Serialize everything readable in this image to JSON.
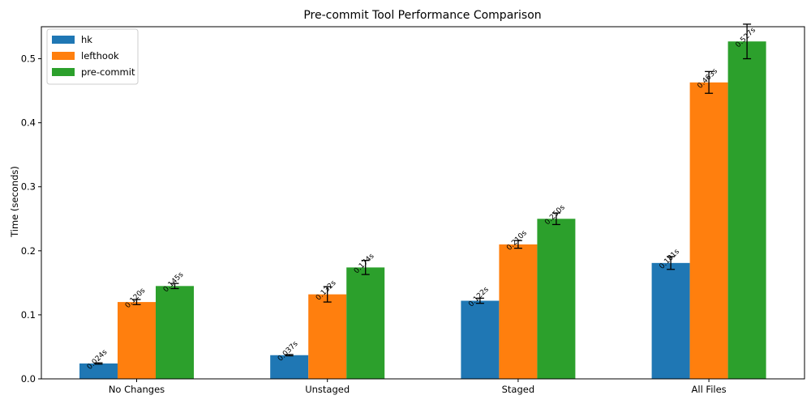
{
  "chart_data": {
    "type": "bar",
    "title": "Pre-commit Tool Performance Comparison",
    "xlabel": "",
    "ylabel": "Time (seconds)",
    "categories": [
      "No Changes",
      "Unstaged",
      "Staged",
      "All Files"
    ],
    "ylim": [
      0,
      0.55
    ],
    "yticks": [
      0.0,
      0.1,
      0.2,
      0.3,
      0.4,
      0.5
    ],
    "ytick_labels": [
      "0.0",
      "0.1",
      "0.2",
      "0.3",
      "0.4",
      "0.5"
    ],
    "grid": false,
    "legend_position": "top-left",
    "series": [
      {
        "name": "hk",
        "color": "#1f77b4",
        "values": [
          0.024,
          0.037,
          0.122,
          0.181
        ],
        "errors": [
          0.001,
          0.001,
          0.004,
          0.01
        ],
        "labels": [
          "0.024s",
          "0.037s",
          "0.122s",
          "0.181s"
        ]
      },
      {
        "name": "lefthook",
        "color": "#ff7f0e",
        "values": [
          0.12,
          0.132,
          0.21,
          0.463
        ],
        "errors": [
          0.004,
          0.012,
          0.006,
          0.017
        ],
        "labels": [
          "0.120s",
          "0.132s",
          "0.210s",
          "0.463s"
        ]
      },
      {
        "name": "pre-commit",
        "color": "#2ca02c",
        "values": [
          0.145,
          0.174,
          0.25,
          0.527
        ],
        "errors": [
          0.004,
          0.011,
          0.009,
          0.027
        ],
        "labels": [
          "0.145s",
          "0.174s",
          "0.250s",
          "0.527s"
        ]
      }
    ]
  }
}
